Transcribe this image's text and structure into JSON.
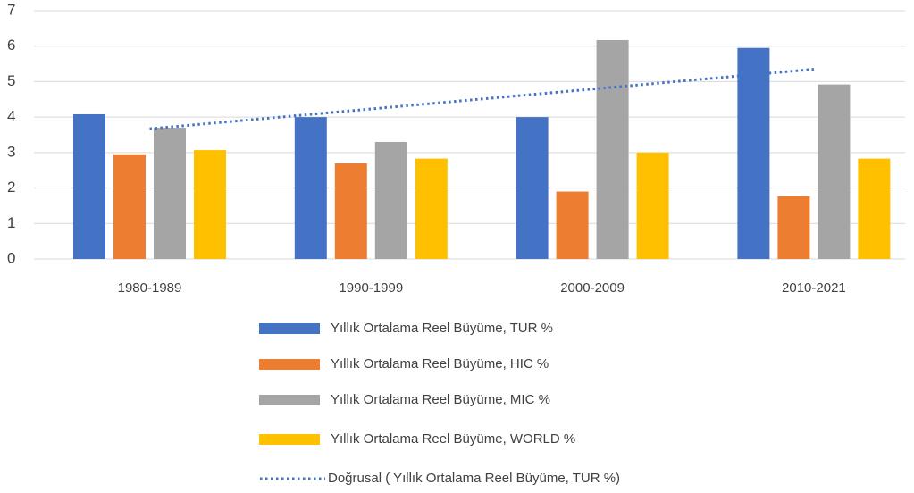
{
  "chart_data": {
    "type": "bar",
    "categories": [
      "1980-1989",
      "1990-1999",
      "2000-2009",
      "2010-2021"
    ],
    "series": [
      {
        "name": "Yıllık Ortalama Reel Büyüme, TUR %",
        "color": "#4472c4",
        "values": [
          4.08,
          4.0,
          4.0,
          5.95
        ]
      },
      {
        "name": "Yıllık Ortalama Reel Büyüme, HIC %",
        "color": "#ed7d31",
        "values": [
          2.95,
          2.7,
          1.9,
          1.77
        ]
      },
      {
        "name": "Yıllık Ortalama Reel Büyüme, MIC %",
        "color": "#a5a5a5",
        "values": [
          3.7,
          3.3,
          6.17,
          4.92
        ]
      },
      {
        "name": "Yıllık Ortalama Reel Büyüme, WORLD %",
        "color": "#ffc000",
        "values": [
          3.07,
          2.83,
          3.0,
          2.83
        ]
      },
      {
        "name": "Doğrusal ( Yıllık Ortalama Reel Büyüme, TUR %)",
        "color": "#4472c4",
        "type": "line",
        "dash": "dotted",
        "values": [
          3.67,
          4.23,
          4.79,
          5.35
        ]
      }
    ],
    "ylim": [
      0,
      7
    ],
    "yticks": [
      0,
      1,
      2,
      3,
      4,
      5,
      6,
      7
    ],
    "grid": true,
    "legend": "bottom"
  }
}
